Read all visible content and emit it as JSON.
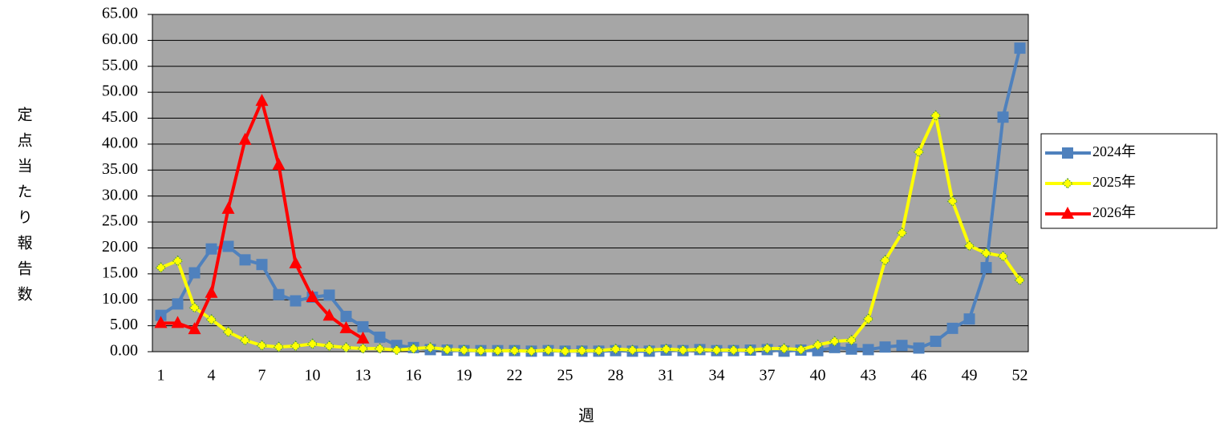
{
  "chart_data": {
    "type": "line",
    "y_label": "定点当たり報告数",
    "x_label": "週",
    "categories": [
      1,
      null,
      null,
      4,
      null,
      null,
      7,
      null,
      null,
      10,
      null,
      null,
      13,
      null,
      null,
      16,
      null,
      null,
      19,
      null,
      null,
      22,
      null,
      null,
      25,
      null,
      null,
      28,
      null,
      null,
      31,
      null,
      null,
      34,
      null,
      null,
      37,
      null,
      null,
      40,
      null,
      null,
      43,
      null,
      null,
      46,
      null,
      null,
      49,
      null,
      null,
      52
    ],
    "series": [
      {
        "name": "2024年",
        "color": "#4f81bd",
        "marker": "square",
        "values": [
          7.0,
          9.2,
          15.2,
          19.8,
          20.3,
          17.7,
          16.8,
          11.0,
          9.8,
          10.5,
          10.9,
          6.8,
          4.8,
          2.8,
          1.2,
          0.8,
          0.4,
          0.3,
          0.2,
          0.2,
          0.2,
          0.2,
          0.1,
          0.2,
          0.1,
          0.1,
          0.1,
          0.2,
          0.1,
          0.1,
          0.3,
          0.2,
          0.4,
          0.2,
          0.2,
          0.3,
          0.4,
          0.1,
          0.3,
          0.2,
          0.8,
          0.5,
          0.4,
          0.9,
          1.2,
          0.7,
          2.0,
          4.5,
          6.3,
          16.2,
          45.2,
          58.5
        ]
      },
      {
        "name": "2025年",
        "color": "#ffff00",
        "marker": "diamond",
        "values": [
          16.2,
          17.5,
          8.5,
          6.2,
          3.8,
          2.2,
          1.2,
          0.9,
          1.1,
          1.5,
          1.1,
          0.8,
          0.6,
          0.6,
          0.3,
          0.6,
          0.8,
          0.4,
          0.3,
          0.2,
          0.2,
          0.2,
          0.1,
          0.3,
          0.1,
          0.2,
          0.2,
          0.5,
          0.3,
          0.3,
          0.5,
          0.3,
          0.4,
          0.3,
          0.3,
          0.3,
          0.6,
          0.6,
          0.4,
          1.3,
          2.0,
          2.2,
          6.3,
          17.6,
          22.9,
          38.5,
          45.5,
          29.0,
          20.4,
          19.0,
          18.4,
          13.8
        ]
      },
      {
        "name": "2026年",
        "color": "#ff0000",
        "marker": "triangle",
        "values": [
          5.5,
          5.5,
          4.3,
          11.3,
          27.5,
          40.8,
          48.3,
          36.0,
          17.0,
          10.5,
          6.9,
          4.5,
          2.5,
          null,
          null,
          null,
          null,
          null,
          null,
          null,
          null,
          null,
          null,
          null,
          null,
          null,
          null,
          null,
          null,
          null,
          null,
          null,
          null,
          null,
          null,
          null,
          null,
          null,
          null,
          null,
          null,
          null,
          null,
          null,
          null,
          null,
          null,
          null,
          null,
          null,
          null,
          null
        ]
      }
    ],
    "ylim": [
      0,
      65
    ],
    "yticks": [
      {
        "value": 0,
        "label": "0.00"
      },
      {
        "value": 5,
        "label": "5.00"
      },
      {
        "value": 10,
        "label": "10.00"
      },
      {
        "value": 15,
        "label": "15.00"
      },
      {
        "value": 20,
        "label": "20.00"
      },
      {
        "value": 25,
        "label": "25.00"
      },
      {
        "value": 30,
        "label": "30.00"
      },
      {
        "value": 35,
        "label": "35.00"
      },
      {
        "value": 40,
        "label": "40.00"
      },
      {
        "value": 45,
        "label": "45.00"
      },
      {
        "value": 50,
        "label": "50.00"
      },
      {
        "value": 55,
        "label": "55.00"
      },
      {
        "value": 60,
        "label": "60.00"
      },
      {
        "value": 65,
        "label": "65.00"
      }
    ],
    "grid": true,
    "legend": "right"
  }
}
